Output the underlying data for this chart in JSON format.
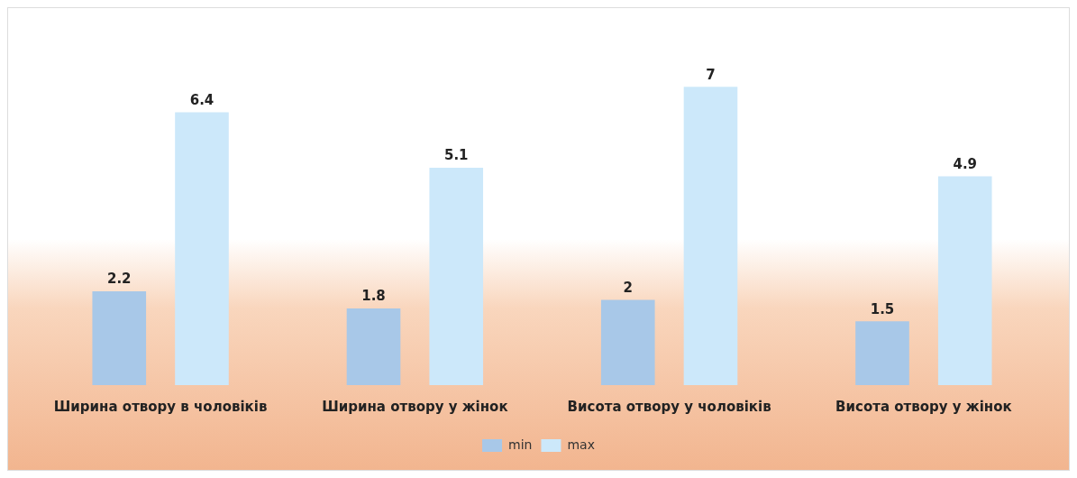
{
  "chart_data": {
    "type": "bar",
    "categories": [
      "Ширина отвору в чоловіків",
      "Ширина отвору у жінок",
      "Висота отвору у чоловіків",
      "Висота отвору у жінок"
    ],
    "series": [
      {
        "name": "min",
        "color": "#a8c8e8",
        "values": [
          2.2,
          1.8,
          2,
          1.5
        ]
      },
      {
        "name": "max",
        "color": "#cce8fa",
        "values": [
          6.4,
          5.1,
          7,
          4.9
        ]
      }
    ],
    "data_labels": true,
    "legend": "bottom",
    "grid": false,
    "relative": false
  }
}
